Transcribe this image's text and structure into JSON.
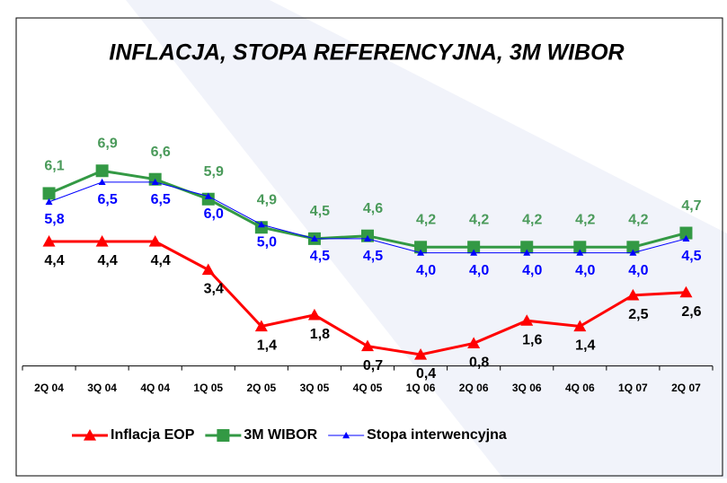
{
  "chart_data": {
    "type": "line",
    "title": "INFLACJA, STOPA REFERENCYJNA, 3M WIBOR",
    "categories": [
      "2Q 04",
      "3Q 04",
      "4Q 04",
      "1Q 05",
      "2Q 05",
      "3Q 05",
      "4Q 05",
      "1Q 06",
      "2Q 06",
      "3Q 06",
      "4Q 06",
      "1Q 07",
      "2Q 07"
    ],
    "series": [
      {
        "name": "Inflacja EOP",
        "color": "#ff0000",
        "marker": "triangle",
        "values": [
          4.4,
          4.4,
          4.4,
          3.4,
          1.4,
          1.8,
          0.7,
          0.4,
          0.8,
          1.6,
          1.4,
          2.5,
          2.6
        ],
        "value_labels": [
          "4,4",
          "4,4",
          "4,4",
          "3,4",
          "1,4",
          "1,8",
          "0,7",
          "0,4",
          "0,8",
          "1,6",
          "1,4",
          "2,5",
          "2,6"
        ]
      },
      {
        "name": "3M WIBOR",
        "color": "#339944",
        "marker": "square",
        "values": [
          6.1,
          6.9,
          6.6,
          5.9,
          4.9,
          4.5,
          4.6,
          4.2,
          4.2,
          4.2,
          4.2,
          4.2,
          4.7
        ],
        "value_labels": [
          "6,1",
          "6,9",
          "6,6",
          "5,9",
          "4,9",
          "4,5",
          "4,6",
          "4,2",
          "4,2",
          "4,2",
          "4,2",
          "4,2",
          "4,7"
        ]
      },
      {
        "name": "Stopa interwencyjna",
        "color": "#0000ff",
        "marker": "small-triangle",
        "values": [
          5.8,
          6.5,
          6.5,
          6.0,
          5.0,
          4.5,
          4.5,
          4.0,
          4.0,
          4.0,
          4.0,
          4.0,
          4.5
        ],
        "value_labels": [
          "5,8",
          "6,5",
          "6,5",
          "6,0",
          "5,0",
          "4,5",
          "4,5",
          "4,0",
          "4,0",
          "4,0",
          "4,0",
          "4,0",
          "4,5"
        ]
      }
    ],
    "ylim": [
      0,
      8
    ],
    "legend": "bottom"
  }
}
